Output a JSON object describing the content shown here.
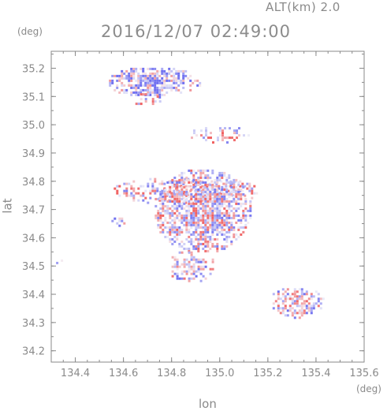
{
  "header": {
    "altitude": "ALT(km)  2.0",
    "timestamp": "2016/12/07  02:49:00",
    "unit_top": "(deg)",
    "unit_right": "(deg)"
  },
  "chart_data": {
    "type": "heatmap",
    "xlabel": "lon",
    "ylabel": "lat",
    "xlim": [
      134.3,
      135.6
    ],
    "ylim": [
      34.16,
      35.26
    ],
    "xticks": [
      "134.4",
      "134.6",
      "134.8",
      "135.0",
      "135.2",
      "135.4",
      "135.6"
    ],
    "xtick_values": [
      134.4,
      134.6,
      134.8,
      135.0,
      135.2,
      135.4,
      135.6
    ],
    "yticks": [
      "34.2",
      "34.3",
      "34.4",
      "34.5",
      "34.6",
      "34.7",
      "34.8",
      "34.9",
      "35.0",
      "35.1",
      "35.2"
    ],
    "ytick_values": [
      34.2,
      34.3,
      34.4,
      34.5,
      34.6,
      34.7,
      34.8,
      34.9,
      35.0,
      35.1,
      35.2
    ],
    "grid": false,
    "colors": {
      "positive": "#f06060",
      "negative": "#7070f0",
      "neutral": "#dcdcf4",
      "axis": "#8a8a8a"
    },
    "regions": [
      {
        "lon": [
          134.52,
          134.92
        ],
        "lat": [
          35.1,
          35.21
        ],
        "density": 0.85,
        "bias": -0.6
      },
      {
        "lon": [
          134.62,
          134.76
        ],
        "lat": [
          35.07,
          35.12
        ],
        "density": 0.45,
        "bias": 0.2
      },
      {
        "lon": [
          134.86,
          135.12
        ],
        "lat": [
          34.94,
          35.0
        ],
        "density": 0.35,
        "bias": 0.1
      },
      {
        "lon": [
          134.55,
          135.18
        ],
        "lat": [
          34.72,
          34.82
        ],
        "density": 0.55,
        "bias": 0.15
      },
      {
        "lon": [
          134.72,
          135.13
        ],
        "lat": [
          34.55,
          34.85
        ],
        "density": 0.85,
        "bias": 0.05
      },
      {
        "lon": [
          134.78,
          134.98
        ],
        "lat": [
          34.44,
          34.56
        ],
        "density": 0.6,
        "bias": -0.2
      },
      {
        "lon": [
          135.2,
          135.43
        ],
        "lat": [
          34.32,
          34.43
        ],
        "density": 0.7,
        "bias": -0.1
      },
      {
        "lon": [
          134.54,
          134.6
        ],
        "lat": [
          34.64,
          34.68
        ],
        "density": 0.3,
        "bias": -0.5
      },
      {
        "lon": [
          134.31,
          134.34
        ],
        "lat": [
          34.51,
          34.54
        ],
        "density": 0.4,
        "bias": -0.3
      }
    ]
  }
}
